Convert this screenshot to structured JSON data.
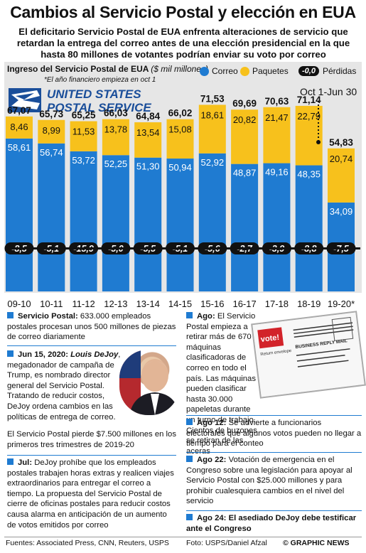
{
  "title": "Cambios al Servicio Postal y elección en EUA",
  "subtitle": "El deficitario Servicio Postal de EUA enfrenta alteraciones de servicio que retardan la entrega del correo antes de una elección presidencial en la que hasta 80 millones de votantes podrían enviar su voto por correo",
  "colors": {
    "correo": "#1f7bd1",
    "paquetes": "#f7c11c",
    "loss": "#111111",
    "panel": "#e6e6e6"
  },
  "chart_data": {
    "type": "bar",
    "title": "Ingreso del Servicio Postal de EUA",
    "ylabel_unit": "($ mil millones)",
    "footnote": "*El año financiero empieza en oct 1",
    "partial_period_label": "Oct 1-Jun 30",
    "categories": [
      "09-10",
      "10-11",
      "11-12",
      "12-13",
      "13-14",
      "14-15",
      "15-16",
      "16-17",
      "17-18",
      "18-19",
      "19-20*"
    ],
    "totals": [
      "67,07",
      "65,73",
      "65,25",
      "66,03",
      "64,84",
      "66,02",
      "71,53",
      "69,69",
      "70,63",
      "71,14",
      "54,83"
    ],
    "series": [
      {
        "name": "Correo",
        "values": [
          58.61,
          56.74,
          53.72,
          52.25,
          51.3,
          50.94,
          52.92,
          48.87,
          49.16,
          48.35,
          34.09
        ],
        "labels": [
          "58,61",
          "56,74",
          "53,72",
          "52,25",
          "51,30",
          "50,94",
          "52,92",
          "48,87",
          "49,16",
          "48,35",
          "34,09"
        ]
      },
      {
        "name": "Paquetes",
        "values": [
          8.46,
          8.99,
          11.53,
          13.78,
          13.54,
          15.08,
          18.61,
          20.82,
          21.47,
          22.79,
          20.74
        ],
        "labels": [
          "8,46",
          "8,99",
          "11,53",
          "13,78",
          "13,54",
          "15,08",
          "18,61",
          "20,82",
          "21,47",
          "22,79",
          "20,74"
        ]
      },
      {
        "name": "Pérdidas",
        "values": [
          -8.5,
          -5.1,
          -15.9,
          -5.0,
          -5.5,
          -5.1,
          -5.6,
          -2.7,
          -3.9,
          -8.8,
          -7.5
        ],
        "labels": [
          "-8,5",
          "-5,1",
          "-15,9",
          "-5,0",
          "-5,5",
          "-5,1",
          "-5,6",
          "-2,7",
          "-3,9",
          "-8,8",
          "-7,5"
        ]
      }
    ],
    "legend": {
      "correo": "Correo",
      "paquetes": "Paquetes",
      "loss_sample": "-0,0",
      "perdidas": "Pérdidas"
    }
  },
  "logo": {
    "line1": "UNITED STATES",
    "line2": "POSTAL SERVICE",
    "icon": "usps-eagle-icon"
  },
  "left_column": [
    {
      "head": "Servicio Postal:",
      "body": " 633.000 empleados postales procesan unos 500 millones de piezas de correo diariamente"
    },
    {
      "head": "Jun 15, 2020:",
      "head2": "Louis DeJoy",
      "body": ", megadonador de campaña de Trump, es nombrado director general del Servicio Postal. Tratando de reducir costos, DeJoy ordena cambios en las políticas de entrega de correo.",
      "body2": "El Servicio Postal pierde $7.500 millones en los primeros tres trimestres de 2019-20"
    },
    {
      "head": "Jul:",
      "body": " DeJoy prohíbe que los empleados postales trabajen horas extras y realicen viajes extraordinarios para entregar el correo a tiempo. La propuesta del Servicio Postal de cierre de oficinas postales para reducir costos causa alarma en anticipación de un aumento de votos emitidos por correo"
    }
  ],
  "right_column": [
    {
      "head": "Ago:",
      "body": " El Servicio Postal empieza a retirar más de 670 máquinas clasificadoras de correo en todo el país. Las máquinas pueden clasificar hasta 30.000 papeletas durante un turno de trabajo. Cientos de buzones se retiran de las aceras"
    },
    {
      "head": "Ago 12:",
      "body": " Se advierte a funcionarios electorales que algunos votos pueden no llegar a tiempo para el conteo"
    },
    {
      "head": "Ago 22:",
      "body": " Votación de emergencia en el Congreso sobre una legislación para apoyar al Servicio Postal con $25.000 millones y para prohibir cualesquiera cambios en el nivel del servicio"
    },
    {
      "head": "Ago 24:",
      "body": " El asediado DeJoy debe testificar ante el Congreso"
    }
  ],
  "ballot": {
    "vote": "vote!",
    "sub": "Return envelope",
    "reply": "BUSINESS REPLY MAIL"
  },
  "footer": {
    "sources": "Fuentes: Associated Press, CNN,  Reuters, USPS",
    "photo": "Foto: USPS/Daniel Afzal",
    "credit": "© GRAPHIC NEWS"
  }
}
